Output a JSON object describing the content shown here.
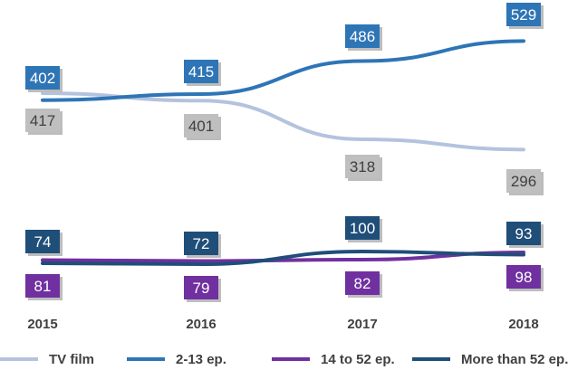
{
  "chart_data": {
    "type": "line",
    "title": "",
    "xlabel": "",
    "ylabel": "",
    "categories": [
      "2015",
      "2016",
      "2017",
      "2018"
    ],
    "grid": false,
    "legend_position": "bottom",
    "series": [
      {
        "name": "TV film",
        "values": [
          417,
          401,
          318,
          296
        ],
        "color": "#b4c3dd",
        "label_fill": "#bfbfbf",
        "label_text": "#404040",
        "label_side": "below"
      },
      {
        "name": "2-13 ep.",
        "values": [
          402,
          415,
          486,
          529
        ],
        "color": "#2e75b6",
        "label_fill": "#2e75b6",
        "label_text": "#ffffff",
        "label_side": "above"
      },
      {
        "name": "14 to 52 ep.",
        "values": [
          81,
          79,
          82,
          98
        ],
        "color": "#7030a0",
        "label_fill": "#7030a0",
        "label_text": "#ffffff",
        "label_side": "below"
      },
      {
        "name": "More than 52 ep.",
        "values": [
          74,
          72,
          100,
          93
        ],
        "color": "#1f4e79",
        "label_fill": "#1f4e79",
        "label_text": "#ffffff",
        "label_side": "above"
      }
    ]
  }
}
